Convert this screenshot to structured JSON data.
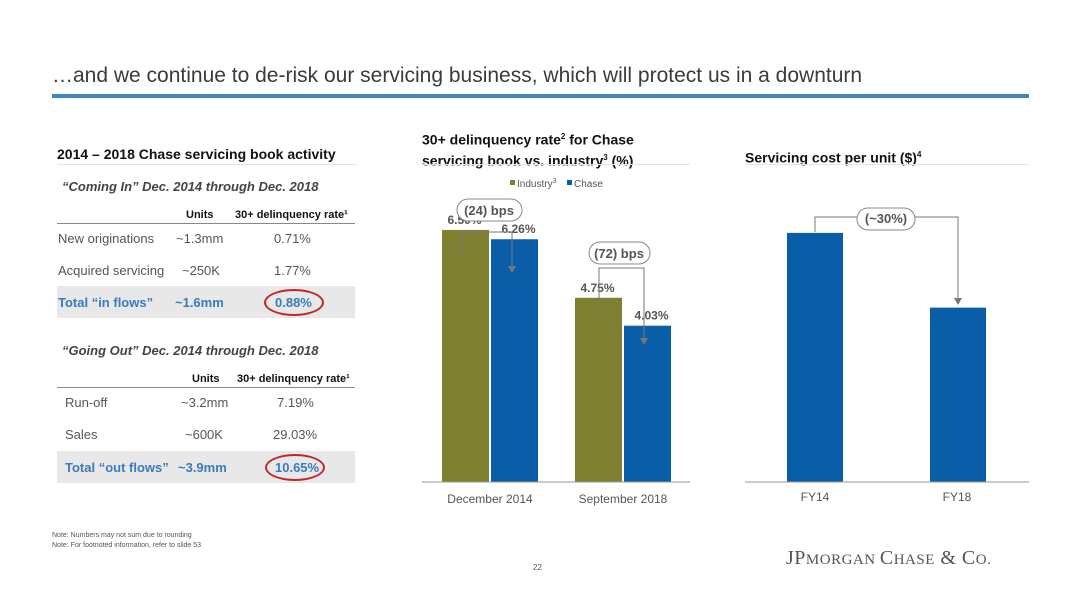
{
  "title": "…and we continue to de-risk our servicing business, which will protect us in a downturn",
  "left": {
    "heading": "2014 – 2018 Chase servicing book activity",
    "coming_in": {
      "title": "“Coming In” Dec. 2014 through Dec. 2018",
      "col_units": "Units",
      "col_rate": "30+ delinquency rate¹",
      "rows": [
        {
          "label": "New originations",
          "units": "~1.3mm",
          "rate": "0.71%"
        },
        {
          "label": "Acquired servicing",
          "units": "~250K",
          "rate": "1.77%"
        }
      ],
      "total": {
        "label": "Total “in flows”",
        "units": "~1.6mm",
        "rate": "0.88%"
      }
    },
    "going_out": {
      "title": "“Going Out” Dec. 2014 through Dec. 2018",
      "col_units": "Units",
      "col_rate": "30+ delinquency rate¹",
      "rows": [
        {
          "label": "Run-off",
          "units": "~3.2mm",
          "rate": "7.19%"
        },
        {
          "label": "Sales",
          "units": "~600K",
          "rate": "29.03%"
        }
      ],
      "total": {
        "label": "Total “out flows”",
        "units": "~3.9mm",
        "rate": "10.65%"
      }
    }
  },
  "chart_data": [
    {
      "type": "bar",
      "title_line1": "30+ delinquency rate",
      "title_sup1": "2",
      "title_line1b": " for Chase",
      "title_line2": "servicing book vs. industry",
      "title_sup2": "3",
      "title_line2b": " (%)",
      "categories": [
        "December 2014",
        "September 2018"
      ],
      "series": [
        {
          "name": "Industry",
          "name_sup": "3",
          "color": "#808033",
          "values": [
            6.5,
            4.75
          ],
          "labels": [
            "6.50%",
            "4.75%"
          ]
        },
        {
          "name": "Chase",
          "color": "#0a5ea8",
          "values": [
            6.26,
            4.03
          ],
          "labels": [
            "6.26%",
            "4.03%"
          ]
        }
      ],
      "annotations": [
        "(24) bps",
        "(72) bps"
      ],
      "legend": "top",
      "ylim": [
        0,
        8.2
      ]
    },
    {
      "type": "bar",
      "title": "Servicing cost per unit ($)",
      "title_sup": "4",
      "categories": [
        "FY14",
        "FY18"
      ],
      "values": [
        1.0,
        0.7
      ],
      "color": "#0a5ea8",
      "annotation": "(~30%)",
      "ylim": [
        0,
        1.2
      ]
    }
  ],
  "notes": [
    "Note: Numbers may not sum due to rounding",
    "Note: For footnoted information, refer to slide 53"
  ],
  "page_number": "22",
  "logo": {
    "p1": "JP",
    "p2": "MORGAN ",
    "p3": "C",
    "p4": "HASE",
    "p5": " & C",
    "p6": "O."
  }
}
